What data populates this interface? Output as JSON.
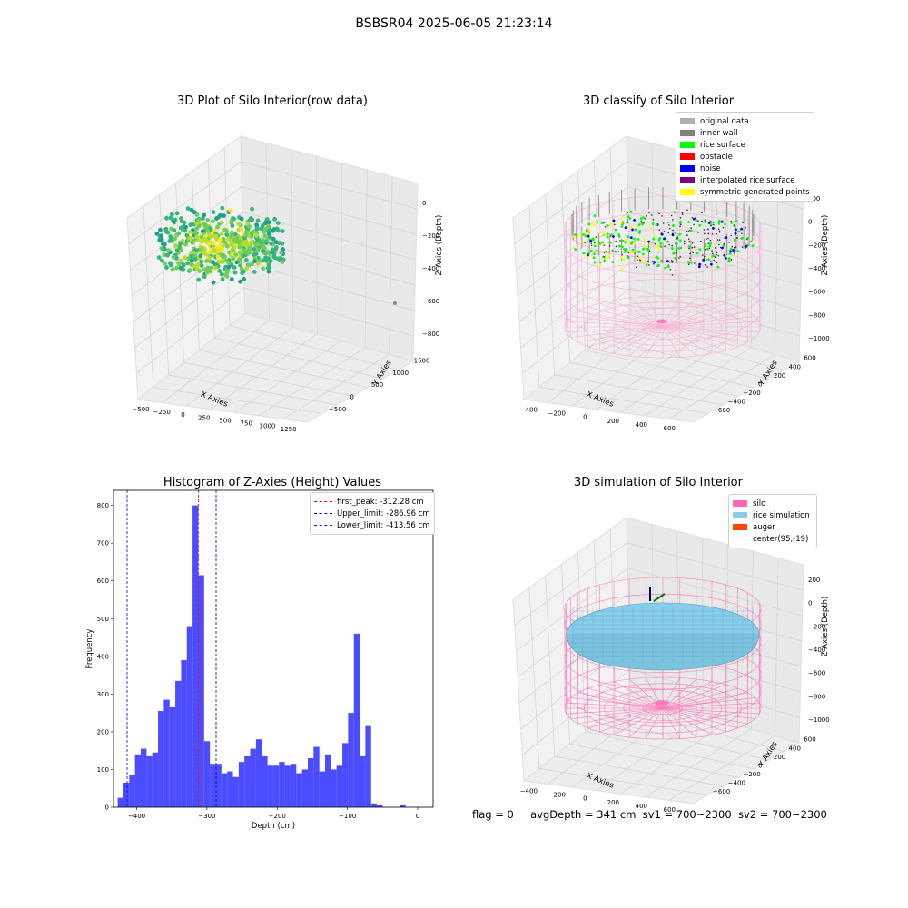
{
  "suptitle": "BSBSR04 2025-06-05 21:23:14",
  "footer": {
    "flag": "flag = 0",
    "avg": "avgDepth = 341 cm",
    "sv1": "sv1 = 700~2300",
    "sv2": "sv2 = 700~2300"
  },
  "chart_data": [
    {
      "type": "scatter",
      "subtype": "3d",
      "title": "3D Plot of Silo Interior(row data)",
      "xlabel": "X Axies",
      "ylabel": "Y Axies",
      "zlabel": "Z Axies (Depth)",
      "xticks": [
        "−500",
        "−250",
        "0",
        "250",
        "500",
        "750",
        "1000",
        "1250"
      ],
      "yticks": [
        "−500",
        "0",
        "500",
        "1000",
        "1500"
      ],
      "zticks": [
        "0",
        "−200",
        "−400",
        "−600",
        "−800"
      ],
      "colormap": [
        "#1f9e89",
        "#35b779",
        "#6ece58",
        "#b5de2b",
        "#fde725"
      ]
    },
    {
      "type": "scatter",
      "subtype": "3d",
      "title": "3D classify of Silo Interior",
      "xlabel": "X Axies",
      "ylabel": "Y Axies",
      "zlabel": "Z Axies (Depth)",
      "xticks": [
        "−400",
        "−200",
        "0",
        "200",
        "400",
        "600"
      ],
      "yticks": [
        "−600",
        "−400",
        "−200",
        "0",
        "200",
        "400",
        "600"
      ],
      "zticks": [
        "200",
        "0",
        "−200",
        "−400",
        "−600",
        "−800",
        "−1000"
      ],
      "legend_position": "top-right",
      "legend": [
        {
          "label": "original data",
          "color": "#b0b0b0"
        },
        {
          "label": "inner wall",
          "color": "#808080"
        },
        {
          "label": "rice surface",
          "color": "#00ff00"
        },
        {
          "label": "obstacle",
          "color": "#ff0000"
        },
        {
          "label": "noise",
          "color": "#0000ff"
        },
        {
          "label": "interpolated rice surface",
          "color": "#800080"
        },
        {
          "label": "symmetric generated points",
          "color": "#ffff00"
        }
      ]
    },
    {
      "type": "bar",
      "subtype": "histogram",
      "title": "Histogram of Z-Axies (Height) Values",
      "xlabel": "Depth (cm)",
      "ylabel": "Frequency",
      "xlim": [
        -433,
        22
      ],
      "ylim": [
        0,
        840
      ],
      "xticks": [
        -400,
        -300,
        -200,
        -100,
        0
      ],
      "yticks": [
        0,
        100,
        200,
        300,
        400,
        500,
        600,
        700,
        800
      ],
      "bar_color": "#4b4bff",
      "bin_start": -427,
      "bin_width": 8.2,
      "values": [
        25,
        65,
        85,
        140,
        155,
        135,
        145,
        255,
        285,
        265,
        335,
        390,
        480,
        800,
        615,
        175,
        115,
        115,
        90,
        95,
        80,
        120,
        135,
        155,
        180,
        135,
        110,
        110,
        120,
        110,
        115,
        90,
        100,
        130,
        160,
        95,
        140,
        100,
        110,
        170,
        250,
        460,
        135,
        215,
        10,
        5,
        0,
        0,
        0,
        5
      ],
      "legend_position": "top-right",
      "lines": [
        {
          "label": "first_peak: -312.28 cm",
          "x": -312.28,
          "color": "#ff0000"
        },
        {
          "label": "Upper_limit: -286.96 cm",
          "x": -286.96,
          "color": "#00008b"
        },
        {
          "label": "Lower_limit: -413.56 cm",
          "x": -413.56,
          "color": "#0000ff"
        }
      ]
    },
    {
      "type": "scatter",
      "subtype": "3d",
      "title": "3D simulation of Silo Interior",
      "xlabel": "X Axies",
      "ylabel": "Y Axies",
      "zlabel": "Z Axies (Depth)",
      "xticks": [
        "−400",
        "−200",
        "0",
        "200",
        "400",
        "600"
      ],
      "yticks": [
        "−600",
        "−400",
        "−200",
        "0",
        "200",
        "400",
        "600"
      ],
      "zticks": [
        "200",
        "0",
        "−200",
        "−400",
        "−600",
        "−800",
        "−1000"
      ],
      "legend_position": "top-right",
      "legend": [
        {
          "label": "silo",
          "color": "#ff69b4"
        },
        {
          "label": "rice simulation",
          "color": "#87ceeb"
        },
        {
          "label": "auger",
          "color": "#ff4500"
        },
        {
          "label": "center(95,-19)",
          "color": ""
        }
      ]
    }
  ]
}
